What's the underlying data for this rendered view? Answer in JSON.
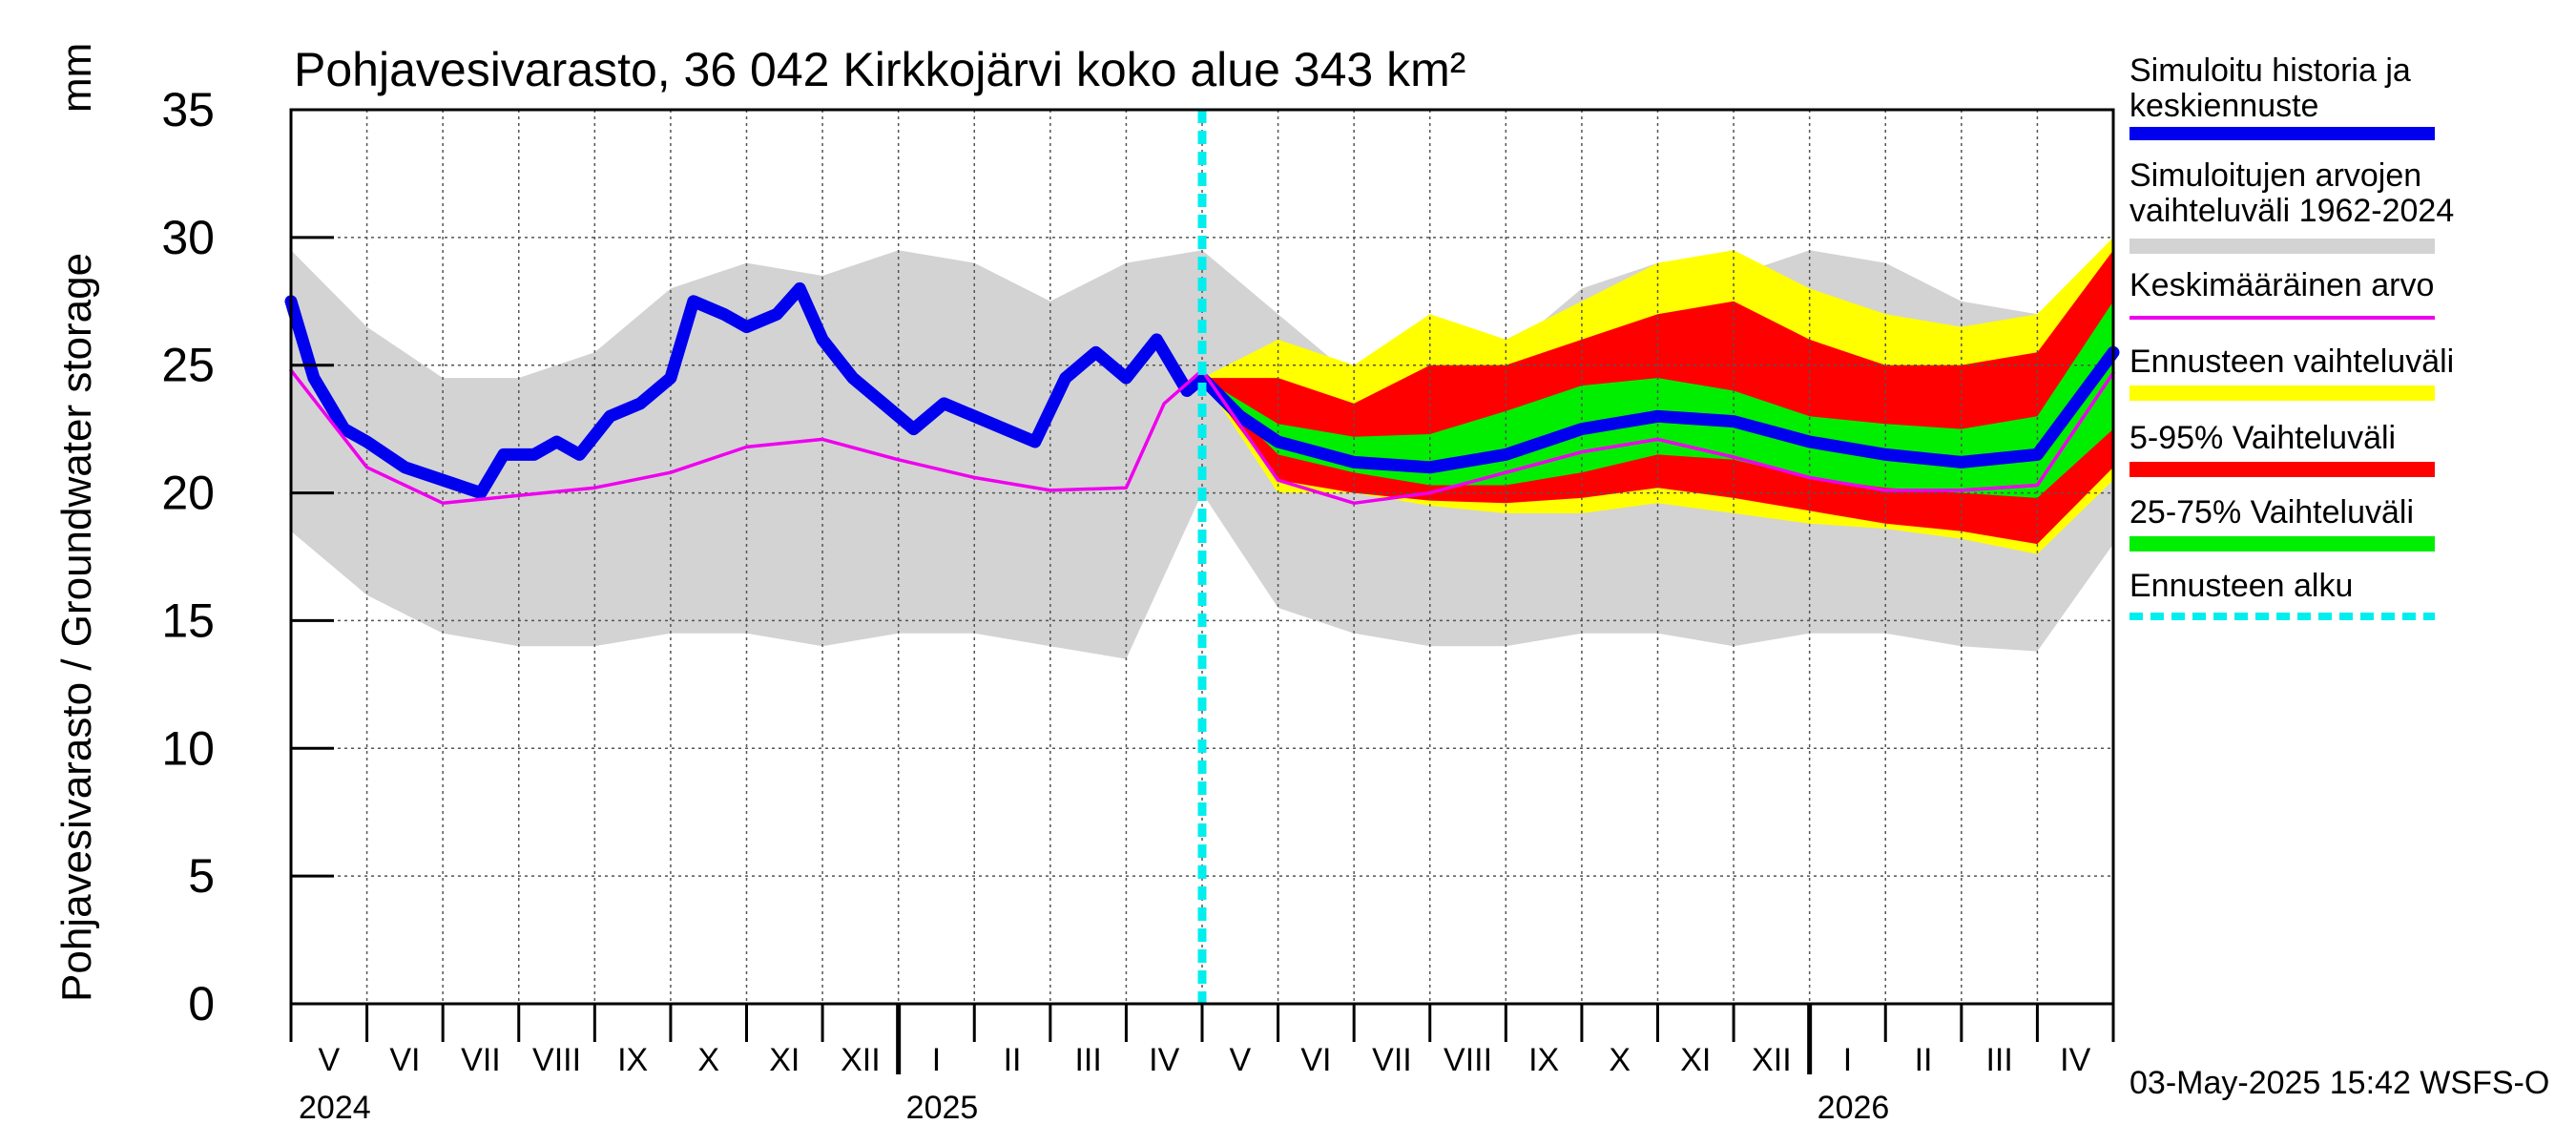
{
  "chart_data": {
    "type": "area",
    "title": "Pohjavesivarasto, 36 042 Kirkkojärvi koko alue 343 km²",
    "ylabel": "Pohjavesivarasto / Groundwater storage",
    "yunit": "mm",
    "ylim": [
      0,
      35
    ],
    "yticks": [
      "0",
      "5",
      "10",
      "15",
      "20",
      "25",
      "30",
      "35"
    ],
    "months": [
      "V",
      "VI",
      "VII",
      "VIII",
      "IX",
      "X",
      "XI",
      "XII",
      "I",
      "II",
      "III",
      "IV",
      "V",
      "VI",
      "VII",
      "VIII",
      "IX",
      "X",
      "XI",
      "XII",
      "I",
      "II",
      "III",
      "IV"
    ],
    "years": [
      "2024",
      "2025",
      "2026"
    ],
    "forecast_start_month_index": 12,
    "timestamp": "03-May-2025 15:42 WSFS-O",
    "legend": [
      {
        "label": "Simuloitu historia ja keskiennuste",
        "color": "#0000ee"
      },
      {
        "label": "Simuloitujen arvojen vaihteluväli 1962-2024",
        "color": "#d3d3d3"
      },
      {
        "label": "Keskimääräinen arvo",
        "color": "#ee00ee"
      },
      {
        "label": "Ennusteen vaihteluväli",
        "color": "#ffff00"
      },
      {
        "label": "5-95% Vaihteluväli",
        "color": "#ff0000"
      },
      {
        "label": "25-75% Vaihteluväli",
        "color": "#00ee00"
      },
      {
        "label": "Ennusteen alku",
        "color": "#00eeee"
      }
    ],
    "series": [
      {
        "name": "Simuloitujen arvojen vaihteluväli 1962-2024",
        "x": [
          0,
          1,
          2,
          3,
          4,
          5,
          6,
          7,
          8,
          9,
          10,
          11,
          12,
          13,
          14,
          15,
          16,
          17,
          18,
          19,
          20,
          21,
          22,
          23,
          24
        ],
        "upper": [
          29.5,
          26.5,
          24.5,
          24.5,
          25.5,
          28,
          29,
          28.5,
          29.5,
          29,
          27.5,
          29,
          29.5,
          27,
          24.5,
          24.5,
          25.5,
          28,
          29,
          28.5,
          29.5,
          29,
          27.5,
          27,
          29
        ],
        "lower": [
          18.5,
          16,
          14.5,
          14,
          14,
          14.5,
          14.5,
          14,
          14.5,
          14.5,
          14,
          13.5,
          20,
          15.5,
          14.5,
          14,
          14,
          14.5,
          14.5,
          14,
          14.5,
          14.5,
          14,
          13.8,
          18
        ]
      },
      {
        "name": "Simuloitu historia ja keskiennuste",
        "x": [
          0,
          0.3,
          0.7,
          1,
          1.5,
          2,
          2.5,
          2.8,
          3.2,
          3.5,
          3.8,
          4.2,
          4.6,
          5,
          5.3,
          5.7,
          6,
          6.4,
          6.7,
          7,
          7.4,
          7.8,
          8.2,
          8.6,
          9,
          9.4,
          9.8,
          10.2,
          10.6,
          11,
          11.4,
          11.8,
          12,
          12.5,
          13,
          14,
          15,
          16,
          17,
          18,
          19,
          20,
          21,
          22,
          23,
          24
        ],
        "values": [
          27.5,
          24.5,
          22.5,
          22,
          21,
          20.5,
          20,
          21.5,
          21.5,
          22,
          21.5,
          23,
          23.5,
          24.5,
          27.5,
          27,
          26.5,
          27,
          28,
          26,
          24.5,
          23.5,
          22.5,
          23.5,
          23,
          22.5,
          22,
          24.5,
          25.5,
          24.5,
          26,
          24,
          24.5,
          23,
          22,
          21.2,
          21,
          21.5,
          22.5,
          23,
          22.8,
          22,
          21.5,
          21.2,
          21.5,
          25.5
        ]
      },
      {
        "name": "Keskimääräinen arvo",
        "x": [
          0,
          1,
          2,
          3,
          4,
          5,
          6,
          7,
          8,
          9,
          10,
          11,
          11.5,
          12,
          13,
          14,
          15,
          16,
          17,
          18,
          19,
          20,
          21,
          22,
          23,
          24
        ],
        "values": [
          24.8,
          21,
          19.6,
          19.9,
          20.2,
          20.8,
          21.8,
          22.1,
          21.3,
          20.6,
          20.1,
          20.2,
          23.5,
          24.8,
          20.5,
          19.6,
          20,
          20.8,
          21.6,
          22.1,
          21.4,
          20.6,
          20.1,
          20.1,
          20.3,
          24.7
        ]
      },
      {
        "name": "Ennusteen vaihteluväli",
        "x": [
          12,
          13,
          14,
          15,
          16,
          17,
          18,
          19,
          20,
          21,
          22,
          23,
          24
        ],
        "upper": [
          24.5,
          26,
          25,
          27,
          26,
          27.5,
          29,
          29.5,
          28,
          27,
          26.5,
          27,
          30
        ],
        "lower": [
          24.5,
          20,
          20,
          19.5,
          19.2,
          19.2,
          19.6,
          19.2,
          18.8,
          18.6,
          18.2,
          17.6,
          20.5
        ]
      },
      {
        "name": "5-95% Vaihteluväli",
        "x": [
          12,
          13,
          14,
          15,
          16,
          17,
          18,
          19,
          20,
          21,
          22,
          23,
          24
        ],
        "upper": [
          24.5,
          24.5,
          23.5,
          25,
          25,
          26,
          27,
          27.5,
          26,
          25,
          25,
          25.5,
          29.5
        ],
        "lower": [
          24.5,
          20.5,
          20,
          19.7,
          19.6,
          19.8,
          20.2,
          19.8,
          19.3,
          18.8,
          18.5,
          18,
          21
        ]
      },
      {
        "name": "25-75% Vaihteluväli",
        "x": [
          12,
          13,
          14,
          15,
          16,
          17,
          18,
          19,
          20,
          21,
          22,
          23,
          24
        ],
        "upper": [
          24.5,
          22.7,
          22.2,
          22.3,
          23.2,
          24.2,
          24.5,
          24,
          23,
          22.7,
          22.5,
          23,
          27.5
        ],
        "lower": [
          24.5,
          21.5,
          20.8,
          20.3,
          20.3,
          20.8,
          21.5,
          21.3,
          20.6,
          20.2,
          20,
          19.8,
          22.5
        ]
      }
    ]
  }
}
